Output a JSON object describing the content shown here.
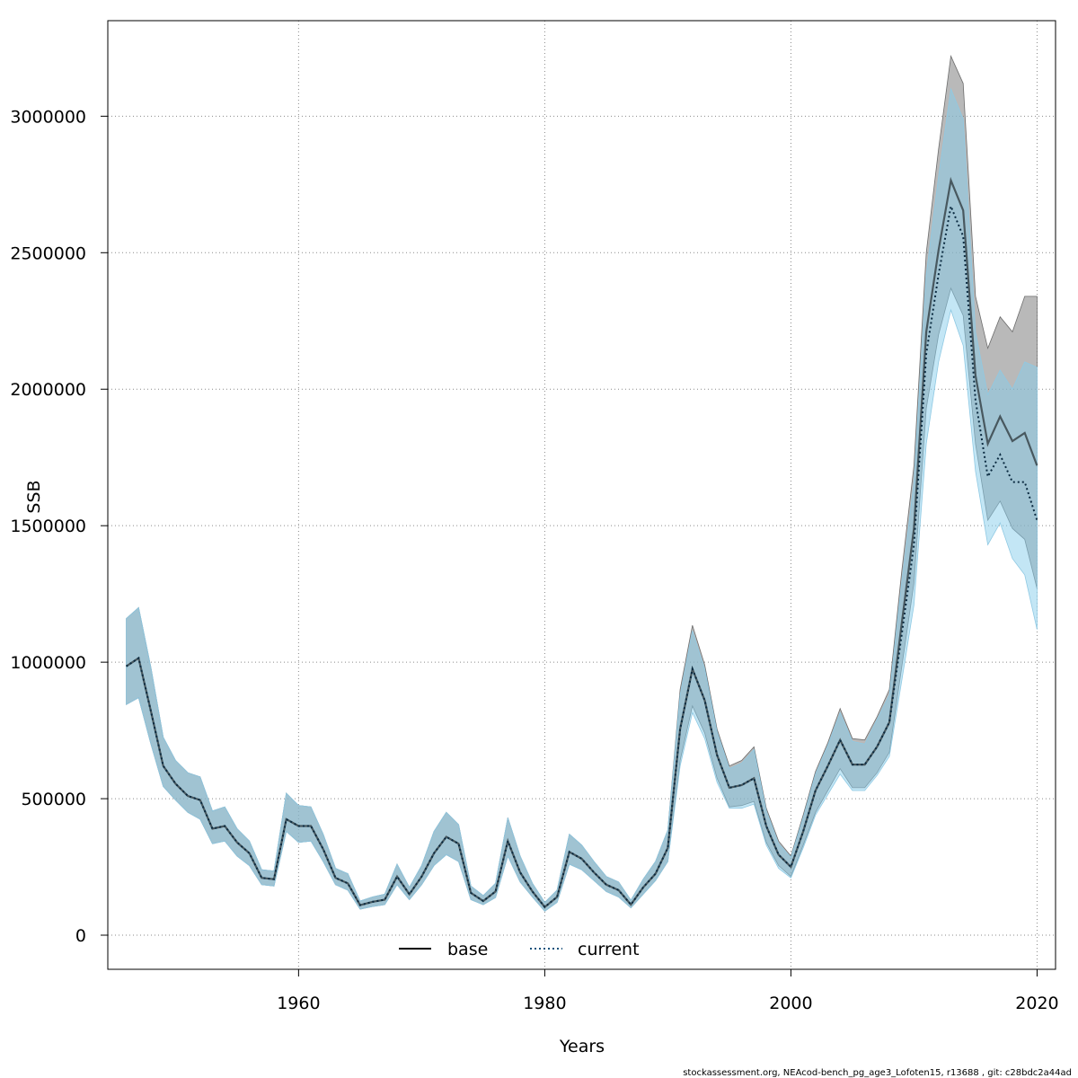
{
  "chart_data": {
    "type": "line",
    "title": "",
    "xlabel": "Years",
    "ylabel": "SSB",
    "xlim": [
      1944.5,
      2021.5
    ],
    "ylim": [
      -125000,
      3350000
    ],
    "x_ticks": [
      1960,
      1980,
      2000,
      2020
    ],
    "x_tick_labels": [
      "1960",
      "1980",
      "2000",
      "2020"
    ],
    "y_ticks": [
      0,
      500000,
      1000000,
      1500000,
      2000000,
      2500000,
      3000000
    ],
    "y_tick_labels": [
      "0",
      "500000",
      "1000000",
      "1500000",
      "2000000",
      "2500000",
      "3000000"
    ],
    "grid": true,
    "legend_position": "bottom",
    "colors": {
      "base_band": "#7f7f7f",
      "base_line": "#000000",
      "current_band": "#87ceeb",
      "current_line": "#0a4f7a",
      "grid": "#8a8a8a"
    },
    "x": [
      1946,
      1947,
      1948,
      1949,
      1950,
      1951,
      1952,
      1953,
      1954,
      1955,
      1956,
      1957,
      1958,
      1959,
      1960,
      1961,
      1962,
      1963,
      1964,
      1965,
      1966,
      1967,
      1968,
      1969,
      1970,
      1971,
      1972,
      1973,
      1974,
      1975,
      1976,
      1977,
      1978,
      1979,
      1980,
      1981,
      1982,
      1983,
      1984,
      1985,
      1986,
      1987,
      1988,
      1989,
      1990,
      1991,
      1992,
      1993,
      1994,
      1995,
      1996,
      1997,
      1998,
      1999,
      2000,
      2001,
      2002,
      2003,
      2004,
      2005,
      2006,
      2007,
      2008,
      2009,
      2010,
      2011,
      2012,
      2013,
      2014,
      2015,
      2016,
      2017,
      2018,
      2019,
      2020
    ],
    "series": [
      {
        "name": "base",
        "style": "solid",
        "values": [
          985000,
          1015000,
          820000,
          620000,
          555000,
          510000,
          495000,
          390000,
          400000,
          340000,
          300000,
          210000,
          205000,
          425000,
          400000,
          400000,
          315000,
          210000,
          190000,
          110000,
          122000,
          130000,
          215000,
          150000,
          215000,
          300000,
          360000,
          335000,
          155000,
          125000,
          160000,
          345000,
          230000,
          160000,
          103000,
          140000,
          305000,
          280000,
          230000,
          185000,
          165000,
          112000,
          175000,
          225000,
          320000,
          755000,
          975000,
          860000,
          660000,
          540000,
          550000,
          575000,
          400000,
          295000,
          250000,
          380000,
          530000,
          620000,
          715000,
          625000,
          625000,
          690000,
          780000,
          1140000,
          1490000,
          2210000,
          2510000,
          2765000,
          2655000,
          2050000,
          1800000,
          1900000,
          1810000,
          1840000,
          1720000
        ],
        "lower": [
          845000,
          870000,
          700000,
          545000,
          495000,
          450000,
          425000,
          335000,
          345000,
          290000,
          255000,
          185000,
          180000,
          380000,
          340000,
          345000,
          270000,
          185000,
          165000,
          95000,
          105000,
          112000,
          185000,
          130000,
          185000,
          255000,
          295000,
          270000,
          130000,
          112000,
          138000,
          290000,
          195000,
          140000,
          88000,
          120000,
          260000,
          240000,
          200000,
          160000,
          140000,
          100000,
          150000,
          200000,
          270000,
          640000,
          840000,
          740000,
          575000,
          470000,
          475000,
          490000,
          340000,
          255000,
          215000,
          330000,
          450000,
          530000,
          610000,
          540000,
          540000,
          595000,
          670000,
          980000,
          1290000,
          1930000,
          2200000,
          2370000,
          2270000,
          1800000,
          1520000,
          1590000,
          1490000,
          1450000,
          1270000
        ],
        "upper": [
          1160000,
          1200000,
          980000,
          725000,
          640000,
          595000,
          580000,
          455000,
          470000,
          390000,
          345000,
          240000,
          235000,
          520000,
          475000,
          470000,
          370000,
          245000,
          225000,
          125000,
          140000,
          150000,
          260000,
          175000,
          255000,
          380000,
          450000,
          405000,
          180000,
          145000,
          190000,
          430000,
          290000,
          190000,
          120000,
          165000,
          370000,
          330000,
          270000,
          215000,
          195000,
          128000,
          205000,
          270000,
          385000,
          900000,
          1135000,
          990000,
          755000,
          620000,
          640000,
          690000,
          465000,
          345000,
          290000,
          440000,
          600000,
          705000,
          830000,
          720000,
          715000,
          800000,
          900000,
          1330000,
          1720000,
          2500000,
          2880000,
          3220000,
          3120000,
          2340000,
          2150000,
          2265000,
          2210000,
          2340000,
          2340000
        ]
      },
      {
        "name": "current",
        "style": "dotted",
        "values": [
          985000,
          1015000,
          820000,
          620000,
          555000,
          510000,
          495000,
          390000,
          400000,
          340000,
          300000,
          210000,
          205000,
          425000,
          400000,
          400000,
          315000,
          210000,
          190000,
          110000,
          122000,
          130000,
          215000,
          150000,
          215000,
          300000,
          360000,
          335000,
          155000,
          125000,
          160000,
          345000,
          230000,
          160000,
          103000,
          140000,
          305000,
          280000,
          230000,
          185000,
          165000,
          112000,
          175000,
          225000,
          320000,
          755000,
          975000,
          860000,
          660000,
          540000,
          550000,
          575000,
          400000,
          295000,
          250000,
          380000,
          530000,
          620000,
          715000,
          625000,
          625000,
          690000,
          780000,
          1100000,
          1430000,
          2130000,
          2420000,
          2670000,
          2560000,
          1960000,
          1680000,
          1760000,
          1660000,
          1660000,
          1520000
        ],
        "lower": [
          845000,
          870000,
          700000,
          545000,
          495000,
          450000,
          425000,
          335000,
          345000,
          290000,
          255000,
          185000,
          180000,
          380000,
          340000,
          345000,
          270000,
          185000,
          165000,
          95000,
          105000,
          112000,
          185000,
          130000,
          185000,
          255000,
          295000,
          270000,
          130000,
          112000,
          138000,
          290000,
          195000,
          140000,
          88000,
          120000,
          260000,
          240000,
          200000,
          160000,
          140000,
          100000,
          150000,
          200000,
          270000,
          620000,
          815000,
          720000,
          560000,
          465000,
          465000,
          480000,
          330000,
          245000,
          210000,
          320000,
          440000,
          515000,
          590000,
          530000,
          530000,
          585000,
          655000,
          930000,
          1210000,
          1800000,
          2100000,
          2290000,
          2160000,
          1700000,
          1430000,
          1510000,
          1380000,
          1320000,
          1120000
        ],
        "upper": [
          1160000,
          1200000,
          980000,
          725000,
          640000,
          595000,
          580000,
          455000,
          470000,
          390000,
          345000,
          240000,
          235000,
          520000,
          475000,
          470000,
          370000,
          245000,
          225000,
          125000,
          140000,
          150000,
          260000,
          175000,
          255000,
          380000,
          450000,
          405000,
          180000,
          145000,
          190000,
          430000,
          290000,
          190000,
          120000,
          165000,
          370000,
          330000,
          270000,
          215000,
          195000,
          128000,
          205000,
          270000,
          385000,
          880000,
          1115000,
          975000,
          745000,
          610000,
          630000,
          680000,
          455000,
          335000,
          285000,
          430000,
          590000,
          695000,
          815000,
          710000,
          700000,
          790000,
          880000,
          1290000,
          1660000,
          2420000,
          2780000,
          3100000,
          2990000,
          2210000,
          1980000,
          2070000,
          2000000,
          2100000,
          2080000
        ]
      }
    ]
  },
  "legend": {
    "base_label": "base",
    "current_label": "current"
  },
  "footer": {
    "text": "stockassessment.org, NEAcod-bench_pg_age3_Lofoten15, r13688 , git: c28bdc2a44ad"
  }
}
